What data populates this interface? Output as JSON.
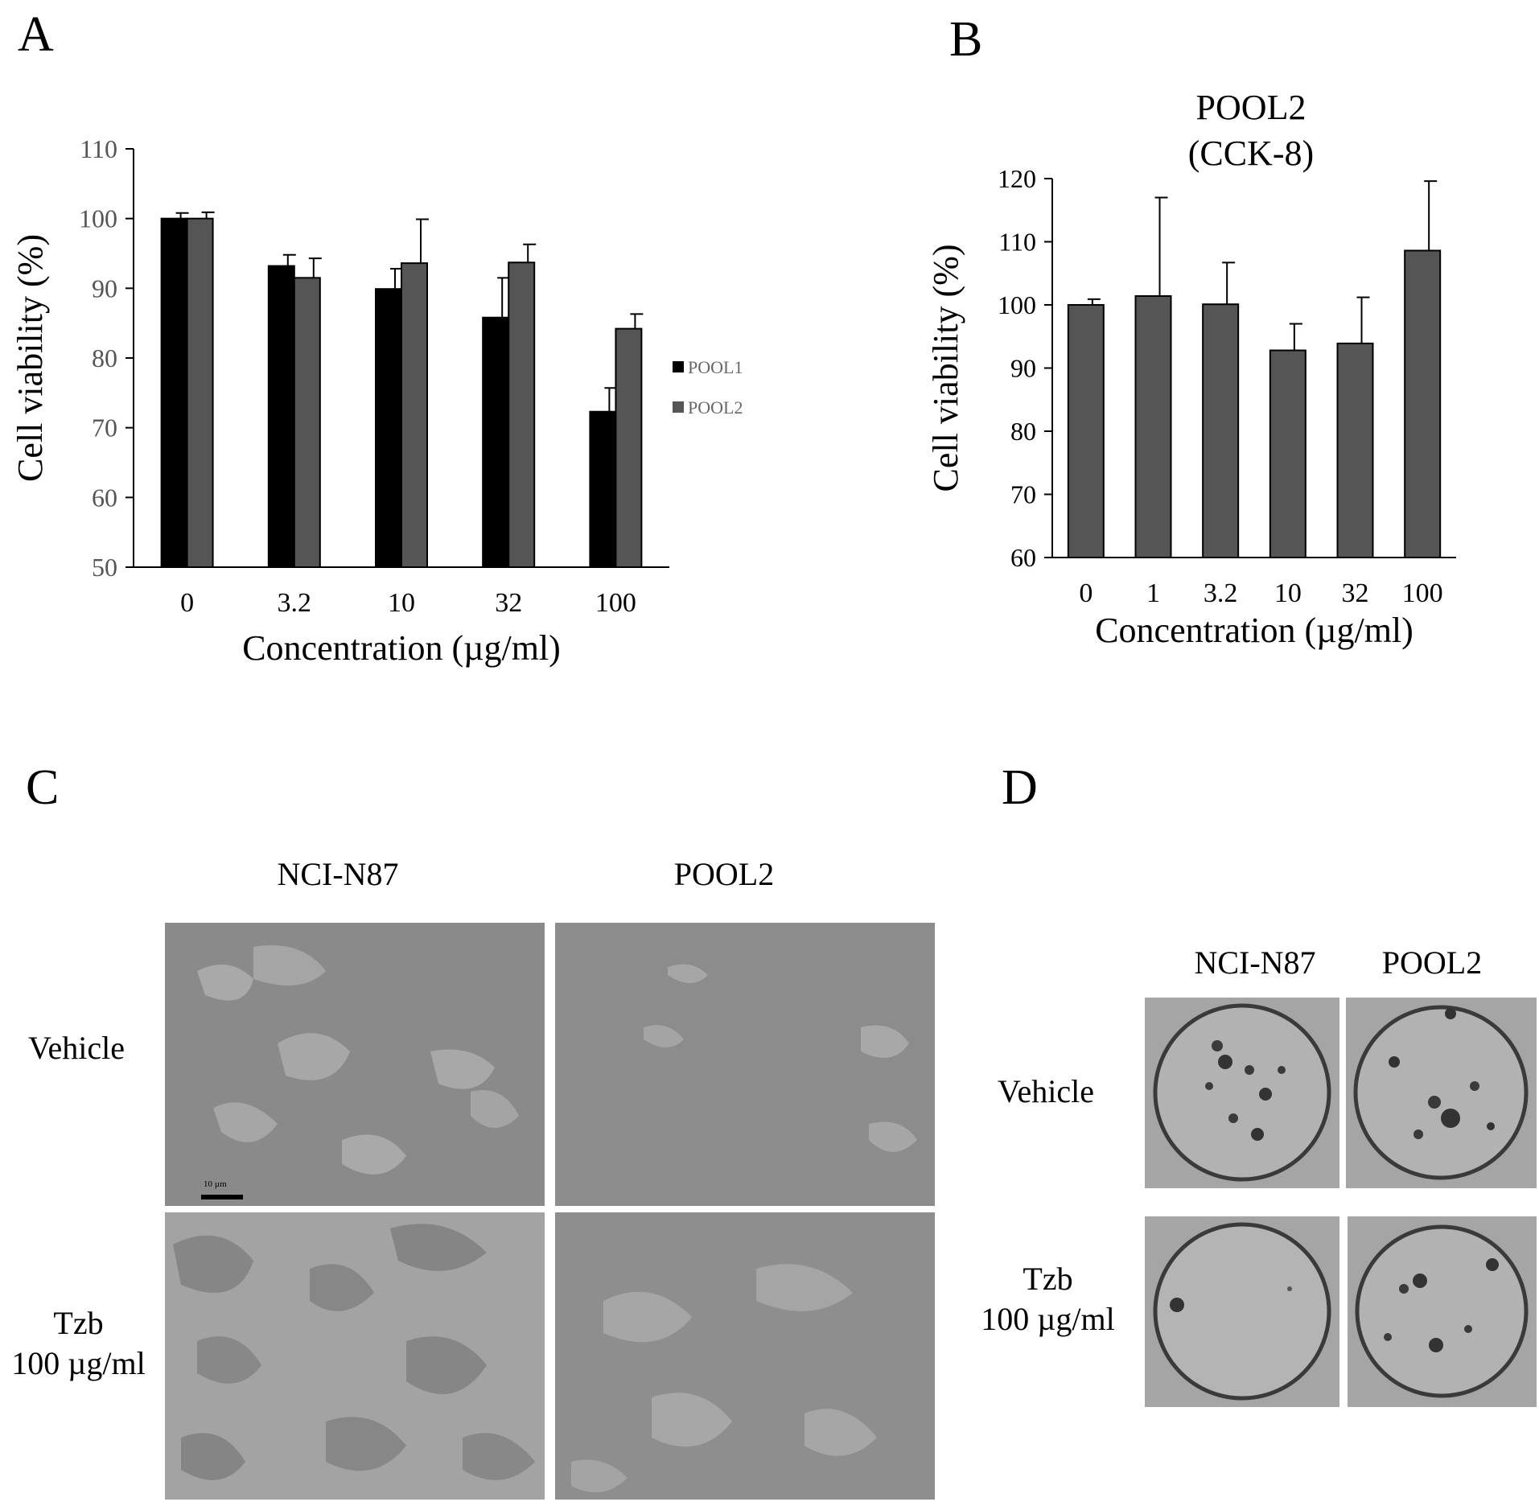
{
  "panels": {
    "a": "A",
    "b": "B",
    "c": "C",
    "d": "D"
  },
  "chart_data": [
    {
      "type": "bar",
      "panel": "A",
      "title": "",
      "xlabel": "Concentration (µg/ml)",
      "ylabel": "Cell viability (%)",
      "categories": [
        "0",
        "3.2",
        "10",
        "32",
        "100"
      ],
      "ylim": [
        50,
        110
      ],
      "yticks": [
        "50",
        "60",
        "70",
        "80",
        "90",
        "100",
        "110"
      ],
      "legend_position": "right",
      "series": [
        {
          "name": "POOL1",
          "color": "#000000",
          "values": [
            100,
            93.2,
            89.9,
            85.8,
            72.3
          ],
          "errors": [
            0.8,
            1.6,
            2.9,
            5.7,
            3.4
          ]
        },
        {
          "name": "POOL2",
          "color": "#555555",
          "values": [
            100,
            91.5,
            93.6,
            93.7,
            84.2
          ],
          "errors": [
            0.9,
            2.8,
            6.3,
            2.6,
            2.1
          ]
        }
      ],
      "grid": false
    },
    {
      "type": "bar",
      "panel": "B",
      "title": "POOL2",
      "subtitle": "(CCK-8)",
      "xlabel": "Concentration (µg/ml)",
      "ylabel": "Cell viability (%)",
      "categories": [
        "0",
        "1",
        "3.2",
        "10",
        "32",
        "100"
      ],
      "ylim": [
        60,
        120
      ],
      "yticks": [
        "60",
        "70",
        "80",
        "90",
        "100",
        "110",
        "120"
      ],
      "series": [
        {
          "name": "",
          "color": "#555555",
          "values": [
            100,
            101.4,
            100.1,
            92.8,
            93.9,
            108.6
          ],
          "errors": [
            0.9,
            15.6,
            6.6,
            4.2,
            7.3,
            11.0
          ]
        }
      ],
      "grid": false
    }
  ],
  "panel_c": {
    "col_labels": [
      "NCI-N87",
      "POOL2"
    ],
    "row_labels": [
      "Vehicle",
      "Tzb\n100 µg/ml"
    ],
    "row1": "Vehicle",
    "row2_line1": "Tzb",
    "row2_line2": "100 µg/ml",
    "scale_bar_label": "10 µm"
  },
  "panel_d": {
    "col1": "NCI-N87",
    "col2": "POOL2",
    "row1": "Vehicle",
    "row2_line1": "Tzb",
    "row2_line2": "100 µg/ml"
  }
}
